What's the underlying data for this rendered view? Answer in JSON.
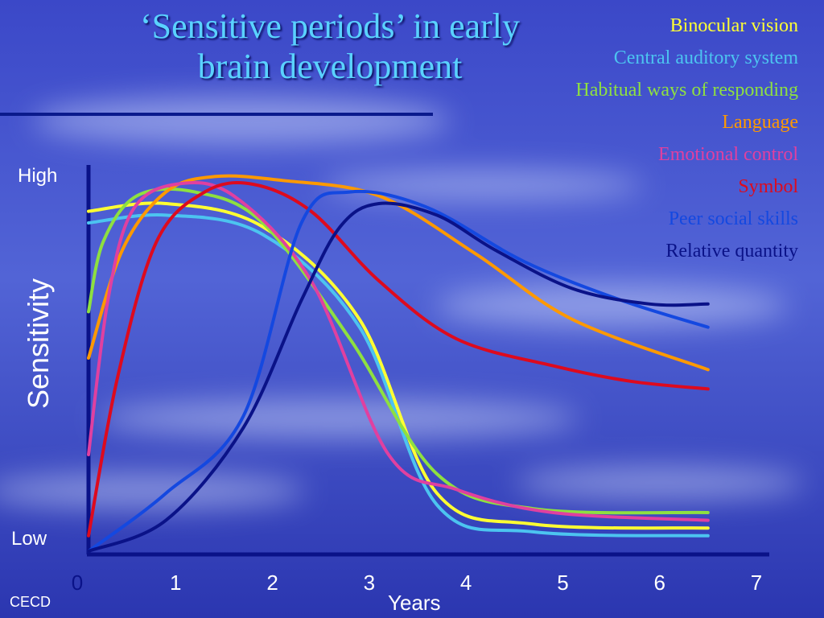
{
  "slide": {
    "title_line1": "‘Sensitive periods’ in early",
    "title_line2": "brain development",
    "credit": "CECD"
  },
  "chart_data": {
    "type": "line",
    "title": "‘Sensitive periods’ in early brain development",
    "xlabel": "Years",
    "ylabel": "Sensitivity",
    "y_tick_labels": {
      "high": "High",
      "low": "Low"
    },
    "xlim": [
      0,
      7
    ],
    "ylim": [
      0,
      1
    ],
    "x_ticks": [
      "0",
      "1",
      "2",
      "3",
      "4",
      "5",
      "6",
      "7"
    ],
    "grid": false,
    "legend_position": "top-right",
    "series": [
      {
        "name": "Binocular vision",
        "color": "#ffff33",
        "x": [
          0,
          0.8,
          1.8,
          2.8,
          3.6,
          4.6,
          6.4
        ],
        "y": [
          0.88,
          0.9,
          0.84,
          0.6,
          0.15,
          0.07,
          0.06
        ]
      },
      {
        "name": "Central auditory system",
        "color": "#4cc4f0",
        "x": [
          0,
          0.8,
          1.8,
          2.8,
          3.6,
          4.6,
          6.4
        ],
        "y": [
          0.85,
          0.87,
          0.82,
          0.58,
          0.12,
          0.05,
          0.04
        ]
      },
      {
        "name": "Habitual ways of responding",
        "color": "#8ee040",
        "x": [
          0,
          0.15,
          0.5,
          1.1,
          1.8,
          2.7,
          3.6,
          4.6,
          6.4
        ],
        "y": [
          0.62,
          0.8,
          0.92,
          0.93,
          0.85,
          0.55,
          0.2,
          0.11,
          0.1
        ]
      },
      {
        "name": "Language",
        "color": "#ff9900",
        "x": [
          0,
          0.35,
          0.8,
          1.3,
          2.0,
          3.0,
          4.0,
          5.0,
          6.4
        ],
        "y": [
          0.5,
          0.78,
          0.93,
          0.97,
          0.96,
          0.92,
          0.77,
          0.6,
          0.47
        ]
      },
      {
        "name": "Emotional control",
        "color": "#e040a0",
        "x": [
          0,
          0.2,
          0.45,
          0.9,
          1.5,
          2.3,
          3.1,
          3.8,
          4.8,
          6.4
        ],
        "y": [
          0.25,
          0.65,
          0.88,
          0.95,
          0.92,
          0.7,
          0.25,
          0.16,
          0.1,
          0.08
        ]
      },
      {
        "name": "Symbol",
        "color": "#dd0a1e",
        "x": [
          0,
          0.3,
          0.7,
          1.2,
          1.7,
          2.3,
          3.0,
          3.8,
          4.8,
          5.6,
          6.4
        ],
        "y": [
          0.04,
          0.45,
          0.8,
          0.93,
          0.95,
          0.88,
          0.7,
          0.55,
          0.48,
          0.44,
          0.42
        ]
      },
      {
        "name": "Peer social skills",
        "color": "#1448e0",
        "x": [
          0,
          0.8,
          1.6,
          2.2,
          2.7,
          3.5,
          4.5,
          5.5,
          6.4
        ],
        "y": [
          0.0,
          0.15,
          0.35,
          0.85,
          0.93,
          0.89,
          0.75,
          0.65,
          0.58
        ]
      },
      {
        "name": "Relative quantity",
        "color": "#0a1288",
        "x": [
          0,
          0.8,
          1.6,
          2.2,
          2.6,
          3.0,
          3.6,
          4.2,
          5.0,
          5.8,
          6.4
        ],
        "y": [
          0.0,
          0.08,
          0.32,
          0.65,
          0.84,
          0.9,
          0.87,
          0.78,
          0.68,
          0.64,
          0.64
        ]
      }
    ]
  }
}
